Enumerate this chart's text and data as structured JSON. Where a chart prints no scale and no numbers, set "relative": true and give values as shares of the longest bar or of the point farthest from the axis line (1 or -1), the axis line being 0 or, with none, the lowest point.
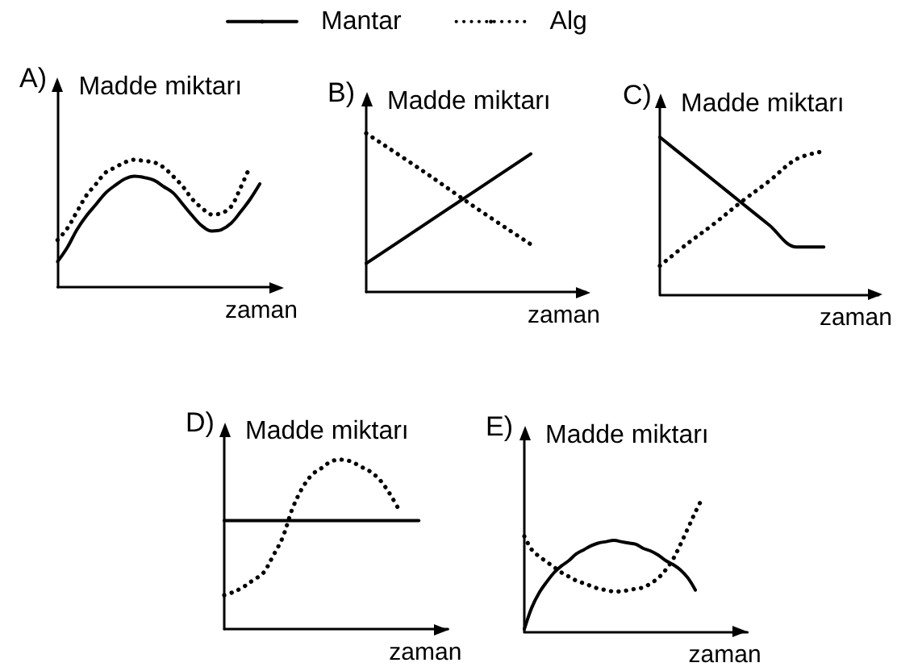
{
  "chart_data": [
    {
      "type": "line",
      "title": "A)",
      "ylabel": "Madde miktarı",
      "xlabel": "zaman",
      "relative": true,
      "categories": [
        null,
        null,
        null,
        null,
        null,
        null,
        null,
        null,
        null,
        null,
        null,
        null,
        null,
        null,
        null,
        null,
        null,
        null,
        null,
        null,
        null,
        null,
        null
      ],
      "series": [
        {
          "color": "#000000",
          "line_style": "solid",
          "values": [
            0.2,
            0.31,
            0.45,
            0.56,
            0.65,
            0.74,
            0.8,
            0.85,
            0.87,
            0.86,
            0.84,
            0.79,
            0.74,
            0.65,
            0.56,
            0.48,
            0.44,
            0.45,
            0.5,
            0.59,
            0.69,
            0.81,
            null
          ]
        },
        {
          "color": "#000000",
          "line_style": "dotted",
          "values": [
            0.37,
            0.46,
            0.59,
            0.72,
            0.81,
            0.9,
            0.94,
            0.98,
            1.0,
            0.99,
            0.98,
            0.94,
            0.87,
            0.79,
            0.69,
            0.62,
            0.57,
            0.58,
            0.63,
            0.78,
            0.95,
            null,
            null
          ]
        }
      ]
    },
    {
      "type": "line",
      "title": "B)",
      "ylabel": "Madde miktarı",
      "xlabel": "zaman",
      "relative": true,
      "legend": "top",
      "categories": [
        null,
        null,
        null,
        null,
        null
      ],
      "series": [
        {
          "name": "Mantar",
          "color": "#000000",
          "line_style": "solid",
          "values": [
            0.18,
            0.41,
            0.64,
            0.87,
            null
          ]
        },
        {
          "name": "Alg",
          "color": "#000000",
          "line_style": "dotted",
          "values": [
            1.0,
            0.77,
            0.53,
            0.3,
            null
          ]
        }
      ]
    },
    {
      "type": "line",
      "title": "C)",
      "ylabel": "Madde miktarı",
      "xlabel": "zaman",
      "relative": true,
      "categories": [
        null,
        null,
        null,
        null,
        null,
        null,
        null,
        null,
        null
      ],
      "series": [
        {
          "color": "#000000",
          "line_style": "solid",
          "values": [
            1.0,
            0.86,
            0.72,
            0.58,
            0.44,
            0.3,
            0.3,
            null,
            null
          ]
        },
        {
          "color": "#000000",
          "line_style": "dotted",
          "values": [
            0.18,
            0.32,
            0.45,
            0.59,
            0.72,
            0.86,
            0.91,
            null,
            null
          ]
        }
      ]
    },
    {
      "type": "line",
      "title": "D)",
      "ylabel": "Madde miktarı",
      "xlabel": "zaman",
      "relative": true,
      "categories": [
        null,
        null,
        null,
        null,
        null,
        null,
        null,
        null,
        null,
        null,
        null,
        null,
        null,
        null,
        null,
        null,
        null,
        null,
        null,
        null,
        null,
        null,
        null,
        null
      ],
      "series": [
        {
          "color": "#000000",
          "line_style": "solid",
          "values": [
            0.64,
            0.64,
            0.64,
            0.64,
            0.64,
            0.64,
            0.64,
            0.64,
            0.64,
            0.64,
            0.64,
            0.64,
            0.64,
            0.64,
            0.64,
            0.64,
            0.64,
            0.64,
            0.64,
            0.64,
            0.64,
            null,
            null,
            null
          ]
        },
        {
          "color": "#000000",
          "line_style": "dotted",
          "values": [
            0.2,
            0.22,
            0.25,
            0.29,
            0.33,
            0.43,
            0.54,
            0.71,
            0.83,
            0.91,
            0.95,
            0.99,
            1.0,
            0.99,
            0.96,
            0.93,
            0.88,
            0.8,
            0.7,
            null,
            null,
            null,
            null,
            null
          ]
        }
      ]
    },
    {
      "type": "line",
      "title": "E)",
      "ylabel": "Madde miktarı",
      "xlabel": "zaman",
      "relative": true,
      "categories": [
        null,
        null,
        null,
        null,
        null,
        null,
        null,
        null,
        null,
        null,
        null,
        null,
        null,
        null,
        null,
        null,
        null,
        null,
        null,
        null,
        null,
        null,
        null,
        null,
        null,
        null,
        null,
        null,
        null,
        null,
        null
      ],
      "series": [
        {
          "color": "#000000",
          "line_style": "solid",
          "values": [
            0.02,
            0.18,
            0.29,
            0.37,
            0.44,
            0.49,
            0.53,
            0.58,
            0.61,
            0.64,
            0.66,
            0.67,
            0.68,
            0.67,
            0.66,
            0.65,
            0.62,
            0.6,
            0.57,
            0.53,
            0.5,
            0.46,
            0.4,
            0.31,
            null,
            null,
            null,
            null,
            null,
            null,
            null
          ]
        },
        {
          "color": "#000000",
          "line_style": "dotted",
          "values": [
            0.71,
            0.61,
            0.56,
            0.52,
            0.48,
            0.44,
            0.41,
            0.38,
            0.36,
            0.34,
            0.32,
            0.31,
            0.3,
            0.3,
            0.31,
            0.32,
            0.33,
            0.36,
            0.4,
            0.46,
            0.54,
            0.65,
            0.77,
            0.89,
            1.0,
            null,
            null,
            null,
            null,
            null,
            null
          ]
        }
      ]
    }
  ]
}
